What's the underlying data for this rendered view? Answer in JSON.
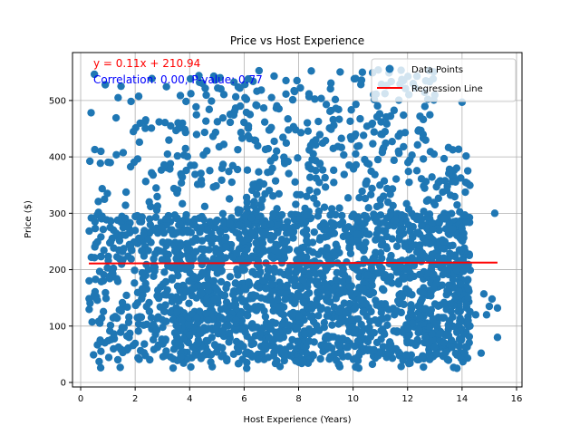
{
  "chart_data": {
    "type": "scatter",
    "title": "Price vs Host Experience",
    "xlabel": "Host Experience (Years)",
    "ylabel": "Price ($)",
    "xlim": [
      -0.3,
      16.2
    ],
    "ylim": [
      -8,
      585
    ],
    "xticks": [
      0,
      2,
      4,
      6,
      8,
      10,
      12,
      14,
      16
    ],
    "yticks": [
      0,
      100,
      200,
      300,
      400,
      500
    ],
    "grid": true,
    "legend_placement": "top-right",
    "colors": {
      "points": "#1f77b4",
      "regression": "#ff0000",
      "equation": "#ff0000",
      "correlation": "#0000ff",
      "grid": "#b0b0b0"
    },
    "annotations": {
      "equation": "y = 0.11x + 210.94",
      "stats": "Correlation: 0.00, P-value: 0.77"
    },
    "series": [
      {
        "name": "Data Points",
        "kind": "scatter",
        "description_of_distribution": "dense cloud",
        "x_range": [
          0.3,
          15.3
        ],
        "y_range": [
          25,
          555
        ],
        "sparse_points": [
          [
            14.8,
            157
          ],
          [
            14.9,
            120
          ],
          [
            15.0,
            135
          ],
          [
            15.1,
            148
          ],
          [
            15.2,
            300
          ],
          [
            15.3,
            132
          ],
          [
            15.3,
            80
          ],
          [
            14.7,
            52
          ],
          [
            14.5,
            120
          ],
          [
            14.1,
            297
          ],
          [
            14.0,
            216
          ],
          [
            14.0,
            497
          ],
          [
            13.8,
            380
          ],
          [
            13.9,
            235
          ],
          [
            14.1,
            52
          ]
        ]
      },
      {
        "name": "Regression Line",
        "kind": "line",
        "slope": 0.11,
        "intercept": 210.94,
        "x_range": [
          0.3,
          15.3
        ]
      }
    ]
  }
}
